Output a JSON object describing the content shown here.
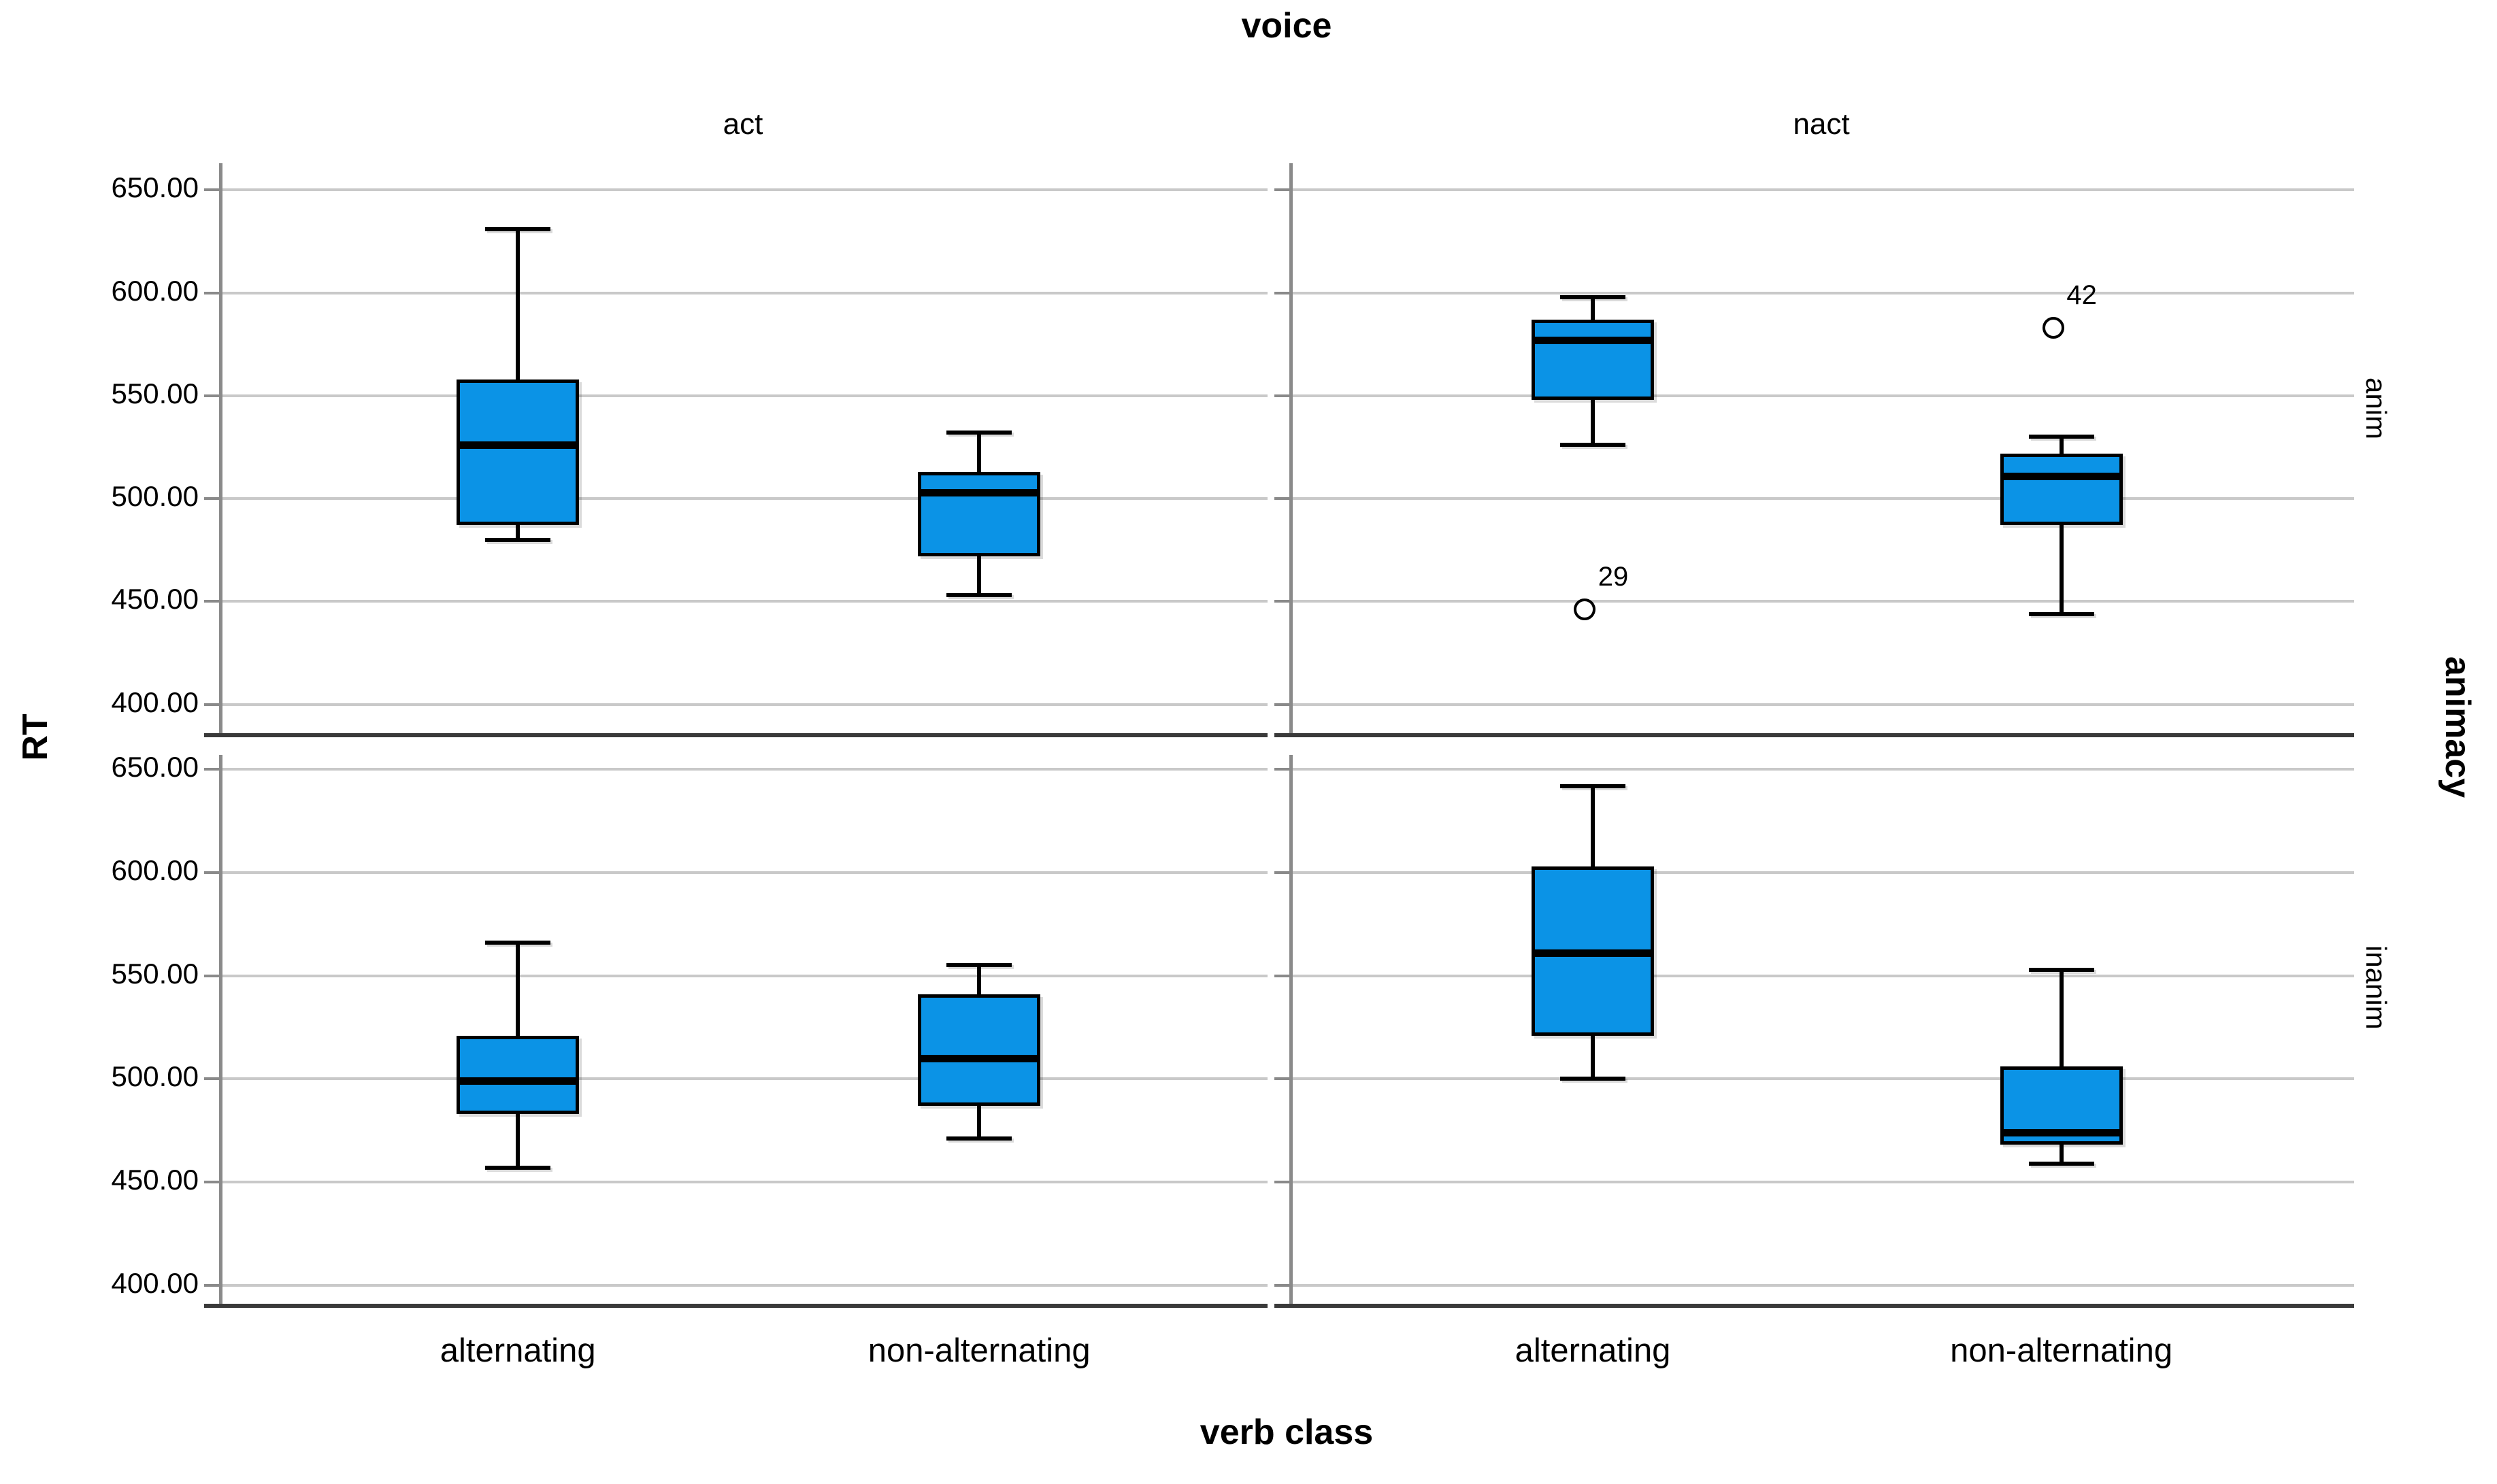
{
  "chart_data": {
    "type": "boxplot",
    "title": "voice",
    "xlabel": "verb class",
    "ylabel": "RT",
    "facet_column_label": "voice",
    "facet_row_label": "animacy",
    "columns": [
      "act",
      "nact"
    ],
    "rows": [
      "anim",
      "inanim"
    ],
    "categories": [
      "alternating",
      "non-alternating"
    ],
    "y_tick_labels": [
      "650.00",
      "600.00",
      "550.00",
      "500.00",
      "450.00",
      "400.00"
    ],
    "y_tick_values": [
      650,
      600,
      550,
      500,
      450,
      400
    ],
    "ylim_top_row": [
      385,
      663
    ],
    "ylim_bottom_row": [
      390,
      657
    ],
    "grid": true,
    "legend": "none",
    "colors": {
      "box_fill": "#0b93e6",
      "box_border": "#000000",
      "median": "#000000",
      "gridline": "#c9c9c9",
      "axis_line": "#8a8a8a",
      "panel_border": "#3a3a3a",
      "text": "#000000"
    },
    "panels": [
      {
        "voice": "act",
        "animacy": "anim",
        "boxes": [
          {
            "category": "alternating",
            "whisker_low": 480,
            "q1": 487,
            "median": 526,
            "q3": 558,
            "whisker_high": 631,
            "outliers": []
          },
          {
            "category": "non-alternating",
            "whisker_low": 453,
            "q1": 472,
            "median": 503,
            "q3": 513,
            "whisker_high": 532,
            "outliers": []
          }
        ]
      },
      {
        "voice": "nact",
        "animacy": "anim",
        "boxes": [
          {
            "category": "alternating",
            "whisker_low": 526,
            "q1": 548,
            "median": 577,
            "q3": 587,
            "whisker_high": 598,
            "outliers": [
              {
                "label": "29",
                "value": 446
              }
            ]
          },
          {
            "category": "non-alternating",
            "whisker_low": 444,
            "q1": 487,
            "median": 511,
            "q3": 522,
            "whisker_high": 530,
            "outliers": [
              {
                "label": "42",
                "value": 583
              }
            ]
          }
        ]
      },
      {
        "voice": "act",
        "animacy": "inanim",
        "boxes": [
          {
            "category": "alternating",
            "whisker_low": 457,
            "q1": 483,
            "median": 499,
            "q3": 521,
            "whisker_high": 566,
            "outliers": []
          },
          {
            "category": "non-alternating",
            "whisker_low": 471,
            "q1": 487,
            "median": 510,
            "q3": 541,
            "whisker_high": 555,
            "outliers": []
          }
        ]
      },
      {
        "voice": "nact",
        "animacy": "inanim",
        "boxes": [
          {
            "category": "alternating",
            "whisker_low": 500,
            "q1": 521,
            "median": 561,
            "q3": 603,
            "whisker_high": 642,
            "outliers": []
          },
          {
            "category": "non-alternating",
            "whisker_low": 459,
            "q1": 468,
            "median": 474,
            "q3": 506,
            "whisker_high": 553,
            "outliers": []
          }
        ]
      }
    ]
  }
}
